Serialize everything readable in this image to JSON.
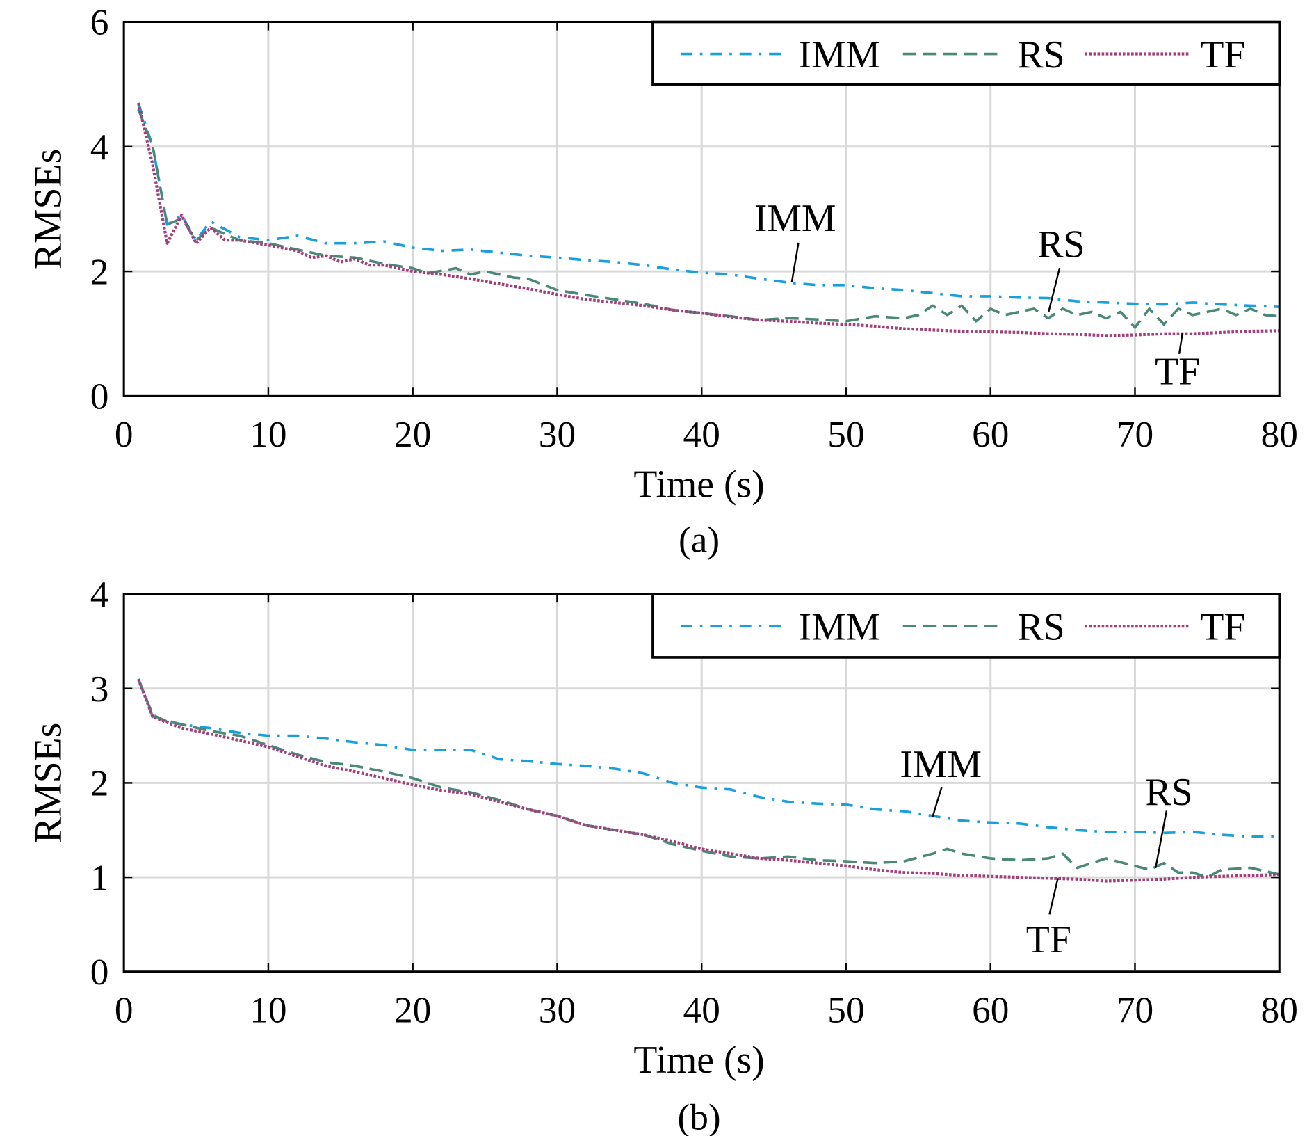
{
  "colors": {
    "IMM": "#1a9fdd",
    "RS": "#4a8878",
    "TF": "#a2407c",
    "grid": "#d9d9d9"
  },
  "chart_data": [
    {
      "type": "line",
      "caption": "(a)",
      "xlabel": "Time (s)",
      "ylabel": "RMSEs",
      "xlim": [
        0,
        80
      ],
      "ylim": [
        0,
        6
      ],
      "xticks": [
        "0",
        "10",
        "20",
        "30",
        "40",
        "50",
        "60",
        "70",
        "80"
      ],
      "yticks": [
        "0",
        "2",
        "4",
        "6"
      ],
      "grid": true,
      "legend": "top-right",
      "series": [
        {
          "name": "IMM",
          "style": "dash-dot",
          "x": [
            1,
            2,
            3,
            4,
            5,
            6,
            8,
            10,
            12,
            14,
            16,
            18,
            20,
            22,
            24,
            26,
            28,
            30,
            32,
            34,
            36,
            38,
            40,
            42,
            44,
            46,
            48,
            50,
            52,
            54,
            56,
            58,
            60,
            62,
            64,
            66,
            68,
            70,
            72,
            74,
            76,
            78,
            80
          ],
          "y": [
            4.7,
            4.0,
            2.75,
            2.9,
            2.5,
            2.8,
            2.55,
            2.5,
            2.57,
            2.45,
            2.45,
            2.48,
            2.38,
            2.33,
            2.35,
            2.3,
            2.25,
            2.22,
            2.18,
            2.15,
            2.1,
            2.03,
            1.98,
            1.95,
            1.88,
            1.82,
            1.78,
            1.78,
            1.73,
            1.7,
            1.65,
            1.6,
            1.6,
            1.58,
            1.57,
            1.52,
            1.5,
            1.48,
            1.47,
            1.5,
            1.47,
            1.45,
            1.43
          ]
        },
        {
          "name": "RS",
          "style": "dashed",
          "x": [
            1,
            2,
            3,
            4,
            5,
            6,
            8,
            10,
            12,
            14,
            16,
            18,
            20,
            21,
            23,
            24,
            25,
            27,
            28,
            30,
            32,
            34,
            36,
            38,
            40,
            42,
            44,
            46,
            48,
            50,
            52,
            54,
            55,
            56,
            57,
            58,
            59,
            60,
            61,
            62,
            63,
            64,
            65,
            66,
            67,
            68,
            69,
            70,
            71,
            72,
            73,
            74,
            75,
            76,
            77,
            78,
            79,
            80
          ],
          "y": [
            4.6,
            4.0,
            2.75,
            2.85,
            2.5,
            2.7,
            2.5,
            2.45,
            2.35,
            2.25,
            2.22,
            2.12,
            2.05,
            1.97,
            2.05,
            1.95,
            2.0,
            1.9,
            1.88,
            1.7,
            1.62,
            1.55,
            1.48,
            1.38,
            1.33,
            1.28,
            1.22,
            1.25,
            1.23,
            1.2,
            1.28,
            1.25,
            1.3,
            1.45,
            1.3,
            1.45,
            1.2,
            1.4,
            1.3,
            1.35,
            1.4,
            1.25,
            1.4,
            1.3,
            1.35,
            1.25,
            1.35,
            1.1,
            1.4,
            1.15,
            1.4,
            1.3,
            1.35,
            1.4,
            1.3,
            1.4,
            1.3,
            1.28
          ]
        },
        {
          "name": "TF",
          "style": "dotted",
          "x": [
            1,
            2,
            3,
            4,
            5,
            6,
            7,
            8,
            10,
            12,
            13,
            14,
            15,
            16,
            17,
            18,
            20,
            22,
            24,
            26,
            28,
            30,
            32,
            34,
            36,
            38,
            40,
            42,
            44,
            46,
            48,
            50,
            52,
            54,
            56,
            58,
            60,
            62,
            64,
            66,
            68,
            70,
            72,
            74,
            76,
            78,
            80
          ],
          "y": [
            4.7,
            3.7,
            2.45,
            2.9,
            2.45,
            2.7,
            2.5,
            2.5,
            2.42,
            2.33,
            2.22,
            2.25,
            2.15,
            2.2,
            2.1,
            2.1,
            2.0,
            1.95,
            1.88,
            1.8,
            1.72,
            1.63,
            1.55,
            1.5,
            1.45,
            1.38,
            1.33,
            1.27,
            1.22,
            1.2,
            1.17,
            1.15,
            1.12,
            1.08,
            1.06,
            1.04,
            1.03,
            1.02,
            1.0,
            0.99,
            0.97,
            0.98,
            1.0,
            1.0,
            1.02,
            1.04,
            1.05
          ]
        }
      ],
      "annotations": [
        "IMM",
        "RS",
        "TF"
      ]
    },
    {
      "type": "line",
      "caption": "(b)",
      "xlabel": "Time (s)",
      "ylabel": "RMSEs",
      "xlim": [
        0,
        80
      ],
      "ylim": [
        0,
        4
      ],
      "xticks": [
        "0",
        "10",
        "20",
        "30",
        "40",
        "50",
        "60",
        "70",
        "80"
      ],
      "yticks": [
        "0",
        "1",
        "2",
        "3",
        "4"
      ],
      "grid": true,
      "legend": "top-right",
      "series": [
        {
          "name": "IMM",
          "style": "dash-dot",
          "x": [
            1,
            2,
            4,
            6,
            8,
            10,
            12,
            14,
            16,
            18,
            20,
            22,
            24,
            26,
            28,
            30,
            32,
            34,
            36,
            38,
            40,
            42,
            44,
            46,
            48,
            50,
            52,
            54,
            56,
            58,
            60,
            62,
            64,
            66,
            68,
            70,
            72,
            74,
            76,
            78,
            80
          ],
          "y": [
            3.1,
            2.7,
            2.62,
            2.58,
            2.53,
            2.5,
            2.5,
            2.47,
            2.43,
            2.4,
            2.35,
            2.35,
            2.35,
            2.25,
            2.23,
            2.2,
            2.18,
            2.15,
            2.1,
            2.0,
            1.95,
            1.93,
            1.85,
            1.8,
            1.78,
            1.77,
            1.72,
            1.7,
            1.65,
            1.6,
            1.58,
            1.57,
            1.53,
            1.5,
            1.48,
            1.48,
            1.47,
            1.48,
            1.45,
            1.43,
            1.43
          ]
        },
        {
          "name": "RS",
          "style": "dashed",
          "x": [
            1,
            2,
            3,
            4,
            6,
            8,
            10,
            12,
            14,
            16,
            18,
            20,
            22,
            24,
            26,
            28,
            30,
            32,
            34,
            36,
            38,
            40,
            42,
            44,
            46,
            48,
            50,
            52,
            54,
            56,
            57,
            58,
            60,
            62,
            64,
            65,
            66,
            67,
            68,
            70,
            71,
            72,
            73,
            74,
            75,
            76,
            78,
            80
          ],
          "y": [
            3.1,
            2.72,
            2.65,
            2.62,
            2.55,
            2.5,
            2.4,
            2.3,
            2.22,
            2.18,
            2.12,
            2.05,
            1.95,
            1.9,
            1.82,
            1.72,
            1.65,
            1.55,
            1.5,
            1.45,
            1.35,
            1.28,
            1.22,
            1.2,
            1.22,
            1.18,
            1.17,
            1.15,
            1.17,
            1.25,
            1.3,
            1.25,
            1.2,
            1.18,
            1.2,
            1.25,
            1.1,
            1.15,
            1.2,
            1.12,
            1.08,
            1.15,
            1.05,
            1.05,
            1.0,
            1.08,
            1.1,
            1.03
          ]
        },
        {
          "name": "TF",
          "style": "dotted",
          "x": [
            1,
            2,
            4,
            6,
            8,
            10,
            12,
            14,
            16,
            18,
            20,
            22,
            24,
            26,
            28,
            30,
            32,
            34,
            36,
            38,
            40,
            42,
            44,
            46,
            48,
            50,
            52,
            54,
            56,
            58,
            60,
            62,
            64,
            66,
            68,
            70,
            72,
            74,
            76,
            78,
            80
          ],
          "y": [
            3.1,
            2.7,
            2.58,
            2.52,
            2.45,
            2.38,
            2.28,
            2.18,
            2.12,
            2.05,
            1.98,
            1.92,
            1.88,
            1.8,
            1.72,
            1.65,
            1.55,
            1.5,
            1.45,
            1.38,
            1.3,
            1.25,
            1.2,
            1.18,
            1.15,
            1.12,
            1.08,
            1.05,
            1.04,
            1.02,
            1.01,
            1.0,
            0.99,
            0.98,
            0.96,
            0.97,
            0.98,
            1.0,
            1.01,
            1.02,
            1.03
          ]
        }
      ],
      "annotations": [
        "IMM",
        "RS",
        "TF"
      ]
    }
  ]
}
